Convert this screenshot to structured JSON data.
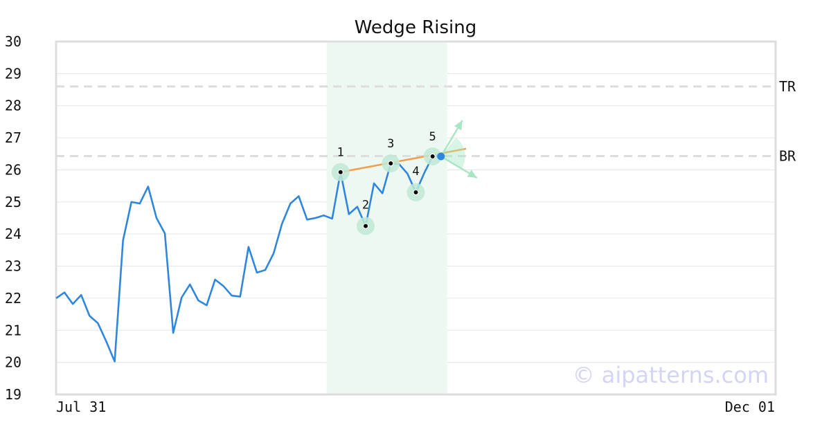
{
  "chart_data": {
    "type": "line",
    "title": "Wedge Rising",
    "x_start_label": "Jul 31",
    "x_end_label": "Dec 01",
    "ylim": [
      19,
      30
    ],
    "yticks": [
      19,
      20,
      21,
      22,
      23,
      24,
      25,
      26,
      27,
      28,
      29,
      30
    ],
    "grid": true,
    "series": [
      {
        "values": [
          22.0,
          22.18,
          21.82,
          22.1,
          21.45,
          21.22,
          20.65,
          20.03,
          23.8,
          25.0,
          24.95,
          25.48,
          24.5,
          24.02,
          20.92,
          22.02,
          22.43,
          21.93,
          21.78,
          22.58,
          22.38,
          22.08,
          22.05,
          23.6,
          22.8,
          22.88,
          23.4,
          24.32,
          24.95,
          25.18,
          24.45,
          24.5,
          24.58,
          24.48,
          25.93,
          24.62,
          24.85,
          24.25,
          25.58,
          25.27,
          26.2,
          26.18,
          25.88,
          25.3,
          25.9,
          26.42,
          26.42
        ]
      }
    ],
    "levels": [
      {
        "label": "TR",
        "value": 28.6
      },
      {
        "label": "BR",
        "value": 26.43
      }
    ],
    "pattern_window": {
      "from_index": 32,
      "to_index": 46
    },
    "pattern_points": [
      {
        "label": "1",
        "index": 34,
        "value": 25.93
      },
      {
        "label": "2",
        "index": 37,
        "value": 24.25
      },
      {
        "label": "3",
        "index": 40,
        "value": 26.2
      },
      {
        "label": "4",
        "index": 43,
        "value": 25.3
      },
      {
        "label": "5",
        "index": 45,
        "value": 26.42
      }
    ],
    "trend_line": {
      "from_index": 34,
      "from_value": 25.93,
      "to_index": 49,
      "to_value": 26.66
    },
    "breakout_point": {
      "index": 46,
      "value": 26.42
    },
    "x_slots": 87,
    "colors": {
      "line": "#2e86de",
      "trend": "#f0a04b",
      "window": "#eef8f3",
      "marker_halo": "#bfe9d3",
      "marker_dot": "#000000",
      "arrows": "#a8e6c4",
      "breakout": "#2e86de",
      "level": "#dddddd",
      "grid": "#e6e6e6",
      "frame": "#dddddd"
    }
  },
  "watermark": "© aipatterns.com"
}
